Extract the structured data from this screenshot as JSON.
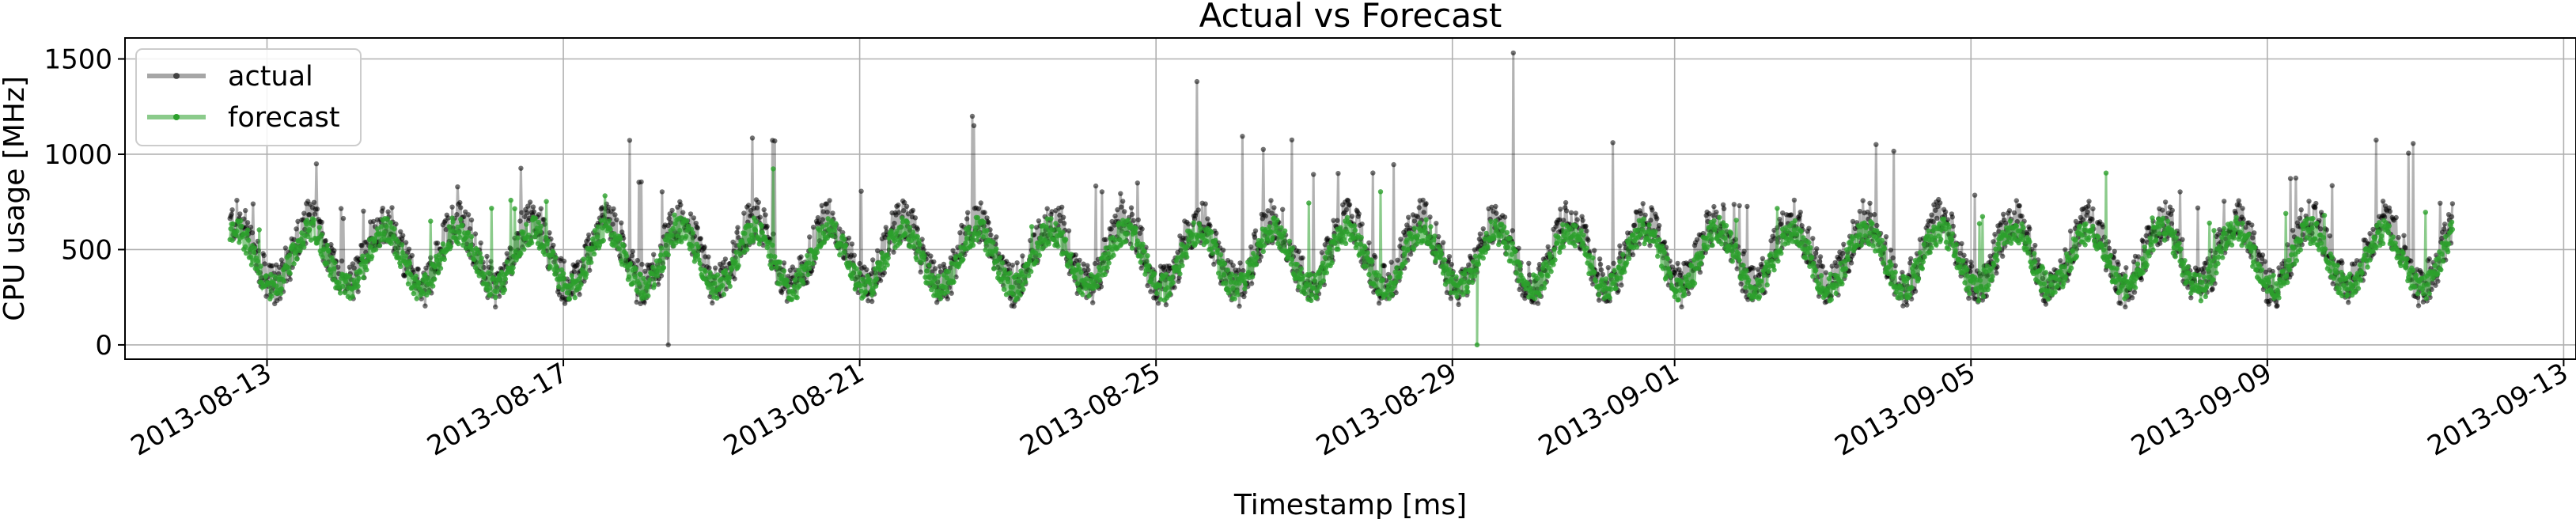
{
  "chart_data": {
    "type": "line",
    "title": "Actual vs Forecast",
    "xlabel": "Timestamp [ms]",
    "ylabel": "CPU usage [MHz]",
    "x_ticks": [
      "2013-08-13",
      "2013-08-17",
      "2013-08-21",
      "2013-08-25",
      "2013-08-29",
      "2013-09-01",
      "2013-09-05",
      "2013-09-09",
      "2013-09-13"
    ],
    "y_ticks": [
      0,
      500,
      1000,
      1500
    ],
    "xlim": [
      "2013-08-11T02:00",
      "2013-09-13T04:00"
    ],
    "ylim": [
      -75,
      1610
    ],
    "grid": true,
    "legend_position": "upper-left",
    "series_start": "2013-08-12T12:00",
    "series_end": "2013-09-11T12:00",
    "series": [
      {
        "name": "actual",
        "color": "#000000",
        "marker": "dot",
        "daily_profile": [
          600,
          470,
          360,
          330,
          400,
          530,
          650,
          720,
          650,
          600,
          560,
          560,
          600,
          540
        ],
        "daily_profile_note": "representative values; actual series oscillates daily",
        "daily_peaks": [
          {
            "date": "2013-08-12",
            "value": 760
          },
          {
            "date": "2013-08-13",
            "value": 1010
          },
          {
            "date": "2013-08-14",
            "value": 740
          },
          {
            "date": "2013-08-15",
            "value": 870
          },
          {
            "date": "2013-08-16",
            "value": 1000
          },
          {
            "date": "2013-08-17",
            "value": 1110
          },
          {
            "date": "2013-08-18",
            "value": 860
          },
          {
            "date": "2013-08-19",
            "value": 1120
          },
          {
            "date": "2013-08-20",
            "value": 1040
          },
          {
            "date": "2013-08-21",
            "value": 860
          },
          {
            "date": "2013-08-22",
            "value": 1220
          },
          {
            "date": "2013-08-23",
            "value": 760
          },
          {
            "date": "2013-08-24",
            "value": 870
          },
          {
            "date": "2013-08-25",
            "value": 1450
          },
          {
            "date": "2013-08-26",
            "value": 1100
          },
          {
            "date": "2013-08-27",
            "value": 920
          },
          {
            "date": "2013-08-28",
            "value": 1020
          },
          {
            "date": "2013-08-29",
            "value": 1540
          },
          {
            "date": "2013-08-30",
            "value": 1380
          },
          {
            "date": "2013-08-31",
            "value": 1130
          },
          {
            "date": "2013-09-01",
            "value": 760
          },
          {
            "date": "2013-09-02",
            "value": 880
          },
          {
            "date": "2013-09-03",
            "value": 1060
          },
          {
            "date": "2013-09-04",
            "value": 830
          },
          {
            "date": "2013-09-05",
            "value": 800
          },
          {
            "date": "2013-09-06",
            "value": 1170
          },
          {
            "date": "2013-09-07",
            "value": 820
          },
          {
            "date": "2013-09-08",
            "value": 780
          },
          {
            "date": "2013-09-09",
            "value": 900
          },
          {
            "date": "2013-09-10",
            "value": 1080
          }
        ],
        "minima_notes": [
          {
            "date": "2013-08-18",
            "value": 0
          }
        ]
      },
      {
        "name": "forecast",
        "color": "#2ca02c",
        "marker": "dot",
        "daily_peaks": [
          {
            "date": "2013-08-12",
            "value": 640
          },
          {
            "date": "2013-08-13",
            "value": 760
          },
          {
            "date": "2013-08-14",
            "value": 640
          },
          {
            "date": "2013-08-15",
            "value": 680
          },
          {
            "date": "2013-08-16",
            "value": 760
          },
          {
            "date": "2013-08-17",
            "value": 790
          },
          {
            "date": "2013-08-18",
            "value": 700
          },
          {
            "date": "2013-08-19",
            "value": 950
          },
          {
            "date": "2013-08-20",
            "value": 760
          },
          {
            "date": "2013-08-21",
            "value": 700
          },
          {
            "date": "2013-08-22",
            "value": 840
          },
          {
            "date": "2013-08-23",
            "value": 660
          },
          {
            "date": "2013-08-24",
            "value": 680
          },
          {
            "date": "2013-08-25",
            "value": 700
          },
          {
            "date": "2013-08-26",
            "value": 880
          },
          {
            "date": "2013-08-27",
            "value": 760
          },
          {
            "date": "2013-08-28",
            "value": 860
          },
          {
            "date": "2013-08-29",
            "value": 760
          },
          {
            "date": "2013-08-30",
            "value": 760
          },
          {
            "date": "2013-08-31",
            "value": 700
          },
          {
            "date": "2013-09-01",
            "value": 690
          },
          {
            "date": "2013-09-02",
            "value": 760
          },
          {
            "date": "2013-09-03",
            "value": 940
          },
          {
            "date": "2013-09-04",
            "value": 700
          },
          {
            "date": "2013-09-05",
            "value": 680
          },
          {
            "date": "2013-09-06",
            "value": 930
          },
          {
            "date": "2013-09-07",
            "value": 690
          },
          {
            "date": "2013-09-08",
            "value": 660
          },
          {
            "date": "2013-09-09",
            "value": 720
          },
          {
            "date": "2013-09-10",
            "value": 800
          }
        ],
        "minima_notes": [
          {
            "date": "2013-08-29",
            "value": 0
          }
        ]
      }
    ],
    "legend": [
      {
        "label": "actual",
        "color": "#000000"
      },
      {
        "label": "forecast",
        "color": "#2ca02c"
      }
    ]
  }
}
